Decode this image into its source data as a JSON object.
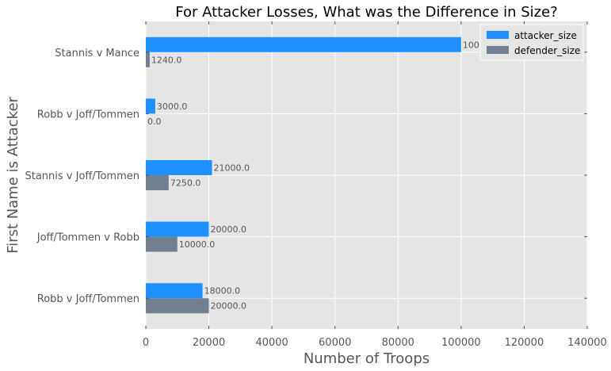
{
  "chart_data": {
    "type": "bar",
    "orientation": "horizontal",
    "title": "For Attacker Losses, What was the Difference in Size?",
    "xlabel": "Number of Troops",
    "ylabel": "First Name is Attacker",
    "xlim": [
      0,
      140000
    ],
    "xticks": [
      "0",
      "20000",
      "40000",
      "60000",
      "80000",
      "100000",
      "120000",
      "140000"
    ],
    "categories": [
      "Robb v Joff/Tommen",
      "Joff/Tommen v Robb",
      "Stannis v Joff/Tommen",
      "Robb v Joff/Tommen",
      "Stannis v Mance"
    ],
    "series": [
      {
        "name": "attacker_size",
        "color": "#1e90ff",
        "values": [
          18000,
          20000,
          21000,
          3000,
          100000
        ],
        "labels": [
          "18000.0",
          "20000.0",
          "21000.0",
          "3000.0",
          "100000.0"
        ]
      },
      {
        "name": "defender_size",
        "color": "#708090",
        "values": [
          20000,
          10000,
          7250,
          0,
          1240
        ],
        "labels": [
          "20000.0",
          "10000.0",
          "7250.0",
          "0.0",
          "1240.0"
        ]
      }
    ],
    "grid": true,
    "legend_position": "top-right",
    "background": "#e5e5e5"
  }
}
